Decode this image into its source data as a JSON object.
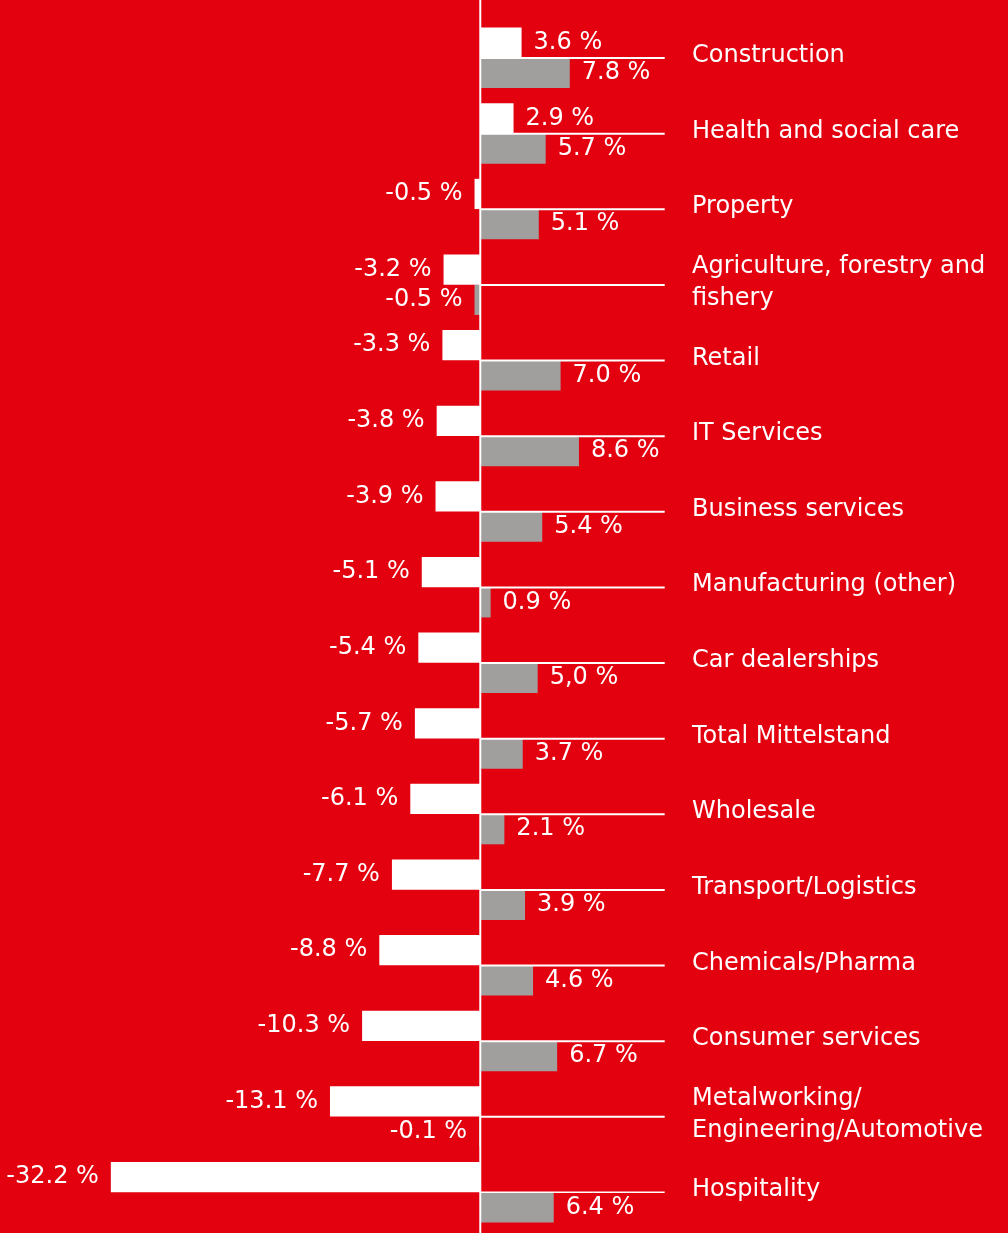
{
  "chart_data": {
    "type": "bar",
    "orientation": "horizontal",
    "legend": false,
    "grid": false,
    "tick_labels": false,
    "categories": [
      "Construction",
      "Health and social care",
      "Property",
      "Agriculture, forestry and fishery",
      "Retail",
      "IT Services",
      "Business services",
      "Manufacturing (other)",
      "Car dealerships",
      "Total Mittelstand",
      "Wholesale",
      "Transport/Logistics",
      "Chemicals/Pharma",
      "Consumer services",
      "Metalworking/ Engineering/Automotive",
      "Hospitality"
    ],
    "series": [
      {
        "color": "#ffffff",
        "values": [
          3.6,
          2.9,
          -0.5,
          -3.2,
          -3.3,
          -3.8,
          -3.9,
          -5.1,
          -5.4,
          -5.7,
          -6.1,
          -7.7,
          -8.8,
          -10.3,
          -13.1,
          -32.2
        ],
        "value_labels": [
          "3.6 %",
          "2.9 %",
          "-0.5 %",
          "-3.2 %",
          "-3.3 %",
          "-3.8 %",
          "-3.9 %",
          "-5.1 %",
          "-5.4 %",
          "-5.7 %",
          "-6.1 %",
          "-7.7 %",
          "-8.8 %",
          "-10.3 %",
          "-13.1 %",
          "-32.2 %"
        ]
      },
      {
        "color": "#a09f9e",
        "values": [
          7.8,
          5.7,
          5.1,
          -0.5,
          7.0,
          8.6,
          5.4,
          0.9,
          5.0,
          3.7,
          2.1,
          3.9,
          4.6,
          6.7,
          -0.1,
          6.4
        ],
        "value_labels": [
          "7.8 %",
          "5.7 %",
          "5.1 %",
          "-0.5 %",
          "7.0 %",
          "8.6 %",
          "5.4 %",
          "0.9 %",
          "5,0 %",
          "3.7 %",
          "2.1 %",
          "3.9 %",
          "4.6 %",
          "6.7 %",
          "-0.1 %",
          "6.4 %"
        ]
      }
    ]
  }
}
